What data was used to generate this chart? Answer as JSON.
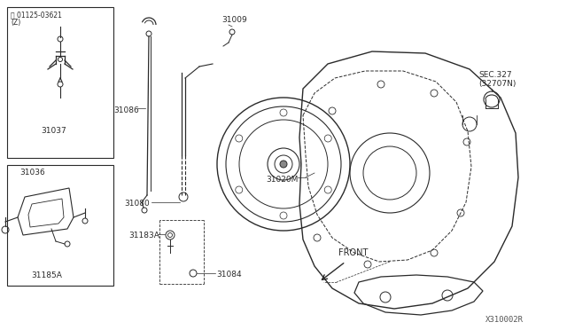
{
  "bg_color": "#ffffff",
  "line_color": "#2a2a2a",
  "diagram_id": "X310002R",
  "parts": {
    "bolt_label_1": "Ⓑ 01125-03621",
    "bolt_label_2": "(Z)",
    "p31037": "31037",
    "p31036": "31036",
    "p31185A": "31185A",
    "p31086": "31086",
    "p31009": "31009",
    "p31080": "31080",
    "p31020M": "31020M",
    "p31183A": "31183A",
    "p31084": "31084",
    "sec327_1": "SEC.327",
    "sec327_2": "(32707N)",
    "front_label": "FRONT"
  },
  "figsize": [
    6.4,
    3.72
  ],
  "dpi": 100
}
